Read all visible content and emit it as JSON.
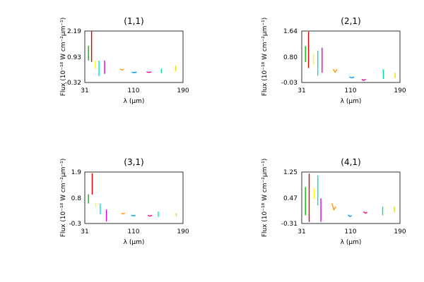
{
  "chart_data": [
    {
      "type": "line",
      "title": "(1,1)",
      "xlabel": "λ (μm)",
      "ylabel": "Flux (10⁻¹⁸ W cm⁻²μm⁻¹)",
      "xlim": [
        31,
        190
      ],
      "ylim": [
        -0.32,
        2.19
      ],
      "xticks": [
        "31",
        "110",
        "190"
      ],
      "yticks": [
        "-0.32",
        "0.93",
        "2.19"
      ],
      "series": [
        {
          "color": "#00c000",
          "x": [
            37,
            37,
            37,
            37,
            37
          ],
          "y": [
            1.35,
            0.95,
            1.45,
            1.1,
            0.75
          ]
        },
        {
          "color": "#e00000",
          "x": [
            42,
            42,
            42,
            42,
            42,
            42
          ],
          "y": [
            2.2,
            1.2,
            1.5,
            0.7,
            1.0,
            0.85
          ]
        },
        {
          "color": "#ffff00",
          "x": [
            48,
            48,
            48,
            48
          ],
          "y": [
            0.75,
            0.5,
            0.65,
            0.35
          ]
        },
        {
          "color": "#00e0e0",
          "x": [
            54,
            54,
            54,
            54
          ],
          "y": [
            0.75,
            0.1,
            0.45,
            0.0
          ]
        },
        {
          "color": "#e000e0",
          "x": [
            63,
            63,
            63,
            63
          ],
          "y": [
            0.75,
            0.15,
            0.45,
            0.1
          ]
        },
        {
          "color": "#ff9900",
          "x": [
            88,
            91,
            94
          ],
          "y": [
            0.35,
            0.28,
            0.33
          ]
        },
        {
          "color": "#00a0ff",
          "x": [
            107,
            111,
            115
          ],
          "y": [
            0.18,
            0.16,
            0.18
          ]
        },
        {
          "color": "#ff0080",
          "x": [
            131,
            135,
            139
          ],
          "y": [
            0.19,
            0.17,
            0.19
          ]
        },
        {
          "color": "#00e0a0",
          "x": [
            155,
            155,
            155
          ],
          "y": [
            0.35,
            0.15,
            0.25
          ]
        },
        {
          "color": "#e0e000",
          "x": [
            178,
            178,
            178
          ],
          "y": [
            0.5,
            0.25,
            0.35
          ]
        }
      ]
    },
    {
      "type": "line",
      "title": "(2,1)",
      "xlabel": "λ (μm)",
      "ylabel": "Flux (10⁻¹⁸ W cm⁻²μm⁻¹)",
      "xlim": [
        31,
        190
      ],
      "ylim": [
        -0.03,
        1.64
      ],
      "xticks": [
        "31",
        "110",
        "190"
      ],
      "yticks": [
        "-0.03",
        "0.80",
        "1.64"
      ],
      "series": [
        {
          "color": "#00c000",
          "x": [
            37,
            37,
            37,
            37
          ],
          "y": [
            1.15,
            0.65,
            0.9,
            0.75
          ]
        },
        {
          "color": "#e00000",
          "x": [
            42,
            42,
            42,
            42,
            42
          ],
          "y": [
            1.62,
            0.45,
            1.3,
            0.85,
            1.1
          ]
        },
        {
          "color": "#ffff00",
          "x": [
            50,
            50,
            50,
            50
          ],
          "y": [
            0.9,
            0.55,
            0.7,
            0.65
          ]
        },
        {
          "color": "#00e0e0",
          "x": [
            57,
            57,
            57,
            57
          ],
          "y": [
            1.0,
            0.2,
            0.6,
            0.4
          ]
        },
        {
          "color": "#e000e0",
          "x": [
            64,
            64,
            64,
            64
          ],
          "y": [
            1.1,
            0.3,
            0.7,
            0.5
          ]
        },
        {
          "color": "#ff9900",
          "x": [
            82,
            85,
            88
          ],
          "y": [
            0.4,
            0.3,
            0.4
          ]
        },
        {
          "color": "#00a0ff",
          "x": [
            108,
            112,
            116
          ],
          "y": [
            0.15,
            0.12,
            0.15
          ]
        },
        {
          "color": "#ff0080",
          "x": [
            128,
            131,
            135
          ],
          "y": [
            0.07,
            0.04,
            0.07
          ]
        },
        {
          "color": "#00e0a0",
          "x": [
            163,
            163,
            163
          ],
          "y": [
            0.4,
            0.1,
            0.25
          ]
        },
        {
          "color": "#e0e000",
          "x": [
            182,
            182,
            182
          ],
          "y": [
            0.28,
            0.12,
            0.18
          ]
        }
      ]
    },
    {
      "type": "line",
      "title": "(3,1)",
      "xlabel": "λ (μm)",
      "ylabel": "Flux (10⁻¹⁸ W cm⁻²μm⁻¹)",
      "xlim": [
        31,
        190
      ],
      "ylim": [
        -0.3,
        1.9
      ],
      "xticks": [
        "31",
        "110",
        "190"
      ],
      "yticks": [
        "-0.3",
        "0.8",
        "1.9"
      ],
      "series": [
        {
          "color": "#00c000",
          "x": [
            37,
            37,
            37,
            37
          ],
          "y": [
            0.95,
            0.6,
            0.8,
            0.55
          ]
        },
        {
          "color": "#e00000",
          "x": [
            43,
            43,
            43,
            43,
            43
          ],
          "y": [
            1.85,
            0.95,
            1.5,
            1.1,
            1.35
          ]
        },
        {
          "color": "#ffff00",
          "x": [
            49,
            49,
            49
          ],
          "y": [
            0.6,
            0.4,
            0.5
          ]
        },
        {
          "color": "#00e0e0",
          "x": [
            56,
            56,
            56,
            56
          ],
          "y": [
            0.55,
            0.1,
            0.35,
            0.2
          ]
        },
        {
          "color": "#e000e0",
          "x": [
            66,
            66,
            66,
            66
          ],
          "y": [
            0.3,
            -0.2,
            0.1,
            -0.1
          ]
        },
        {
          "color": "#ff9900",
          "x": [
            90,
            93,
            96
          ],
          "y": [
            0.15,
            0.1,
            0.15
          ]
        },
        {
          "color": "#00a0ff",
          "x": [
            106,
            110,
            113
          ],
          "y": [
            0.05,
            0.03,
            0.05
          ]
        },
        {
          "color": "#ff0080",
          "x": [
            133,
            137,
            140
          ],
          "y": [
            0.05,
            0.02,
            0.05
          ]
        },
        {
          "color": "#00e0a0",
          "x": [
            150,
            150,
            150
          ],
          "y": [
            0.2,
            0.0,
            0.1
          ]
        },
        {
          "color": "#e0e000",
          "x": [
            179,
            179,
            179
          ],
          "y": [
            0.15,
            0.02,
            0.08
          ]
        }
      ]
    },
    {
      "type": "line",
      "title": "(4,1)",
      "xlabel": "λ (μm)",
      "ylabel": "Flux (10⁻¹⁸ W cm⁻²μm⁻¹)",
      "xlim": [
        31,
        190
      ],
      "ylim": [
        -0.31,
        1.25
      ],
      "xticks": [
        "31",
        "110",
        "190"
      ],
      "yticks": [
        "-0.31",
        "0.47",
        "1.25"
      ],
      "series": [
        {
          "color": "#00c000",
          "x": [
            37,
            37,
            37,
            37
          ],
          "y": [
            0.8,
            -0.05,
            0.45,
            0.2
          ]
        },
        {
          "color": "#e00000",
          "x": [
            43,
            43,
            43,
            43,
            43
          ],
          "y": [
            1.2,
            -0.25,
            0.95,
            0.3,
            0.6
          ]
        },
        {
          "color": "#ffff00",
          "x": [
            51,
            51,
            51
          ],
          "y": [
            0.75,
            0.45,
            0.6
          ]
        },
        {
          "color": "#00e0e0",
          "x": [
            57,
            57,
            57,
            57
          ],
          "y": [
            1.15,
            0.25,
            0.75,
            0.45
          ]
        },
        {
          "color": "#e000e0",
          "x": [
            62,
            62,
            62,
            62
          ],
          "y": [
            0.45,
            -0.25,
            0.15,
            -0.05
          ]
        },
        {
          "color": "#ff9900",
          "x": [
            80,
            83,
            86
          ],
          "y": [
            0.3,
            0.1,
            0.2
          ]
        },
        {
          "color": "#00a0ff",
          "x": [
            106,
            109,
            112
          ],
          "y": [
            -0.05,
            -0.1,
            -0.07
          ]
        },
        {
          "color": "#ff0080",
          "x": [
            131,
            134,
            137
          ],
          "y": [
            0.05,
            0.0,
            0.03
          ]
        },
        {
          "color": "#00e0a0",
          "x": [
            162,
            162,
            162
          ],
          "y": [
            0.2,
            -0.05,
            0.08
          ]
        },
        {
          "color": "#e0e000",
          "x": [
            181,
            181,
            181
          ],
          "y": [
            0.2,
            0.05,
            0.12
          ]
        }
      ]
    }
  ]
}
